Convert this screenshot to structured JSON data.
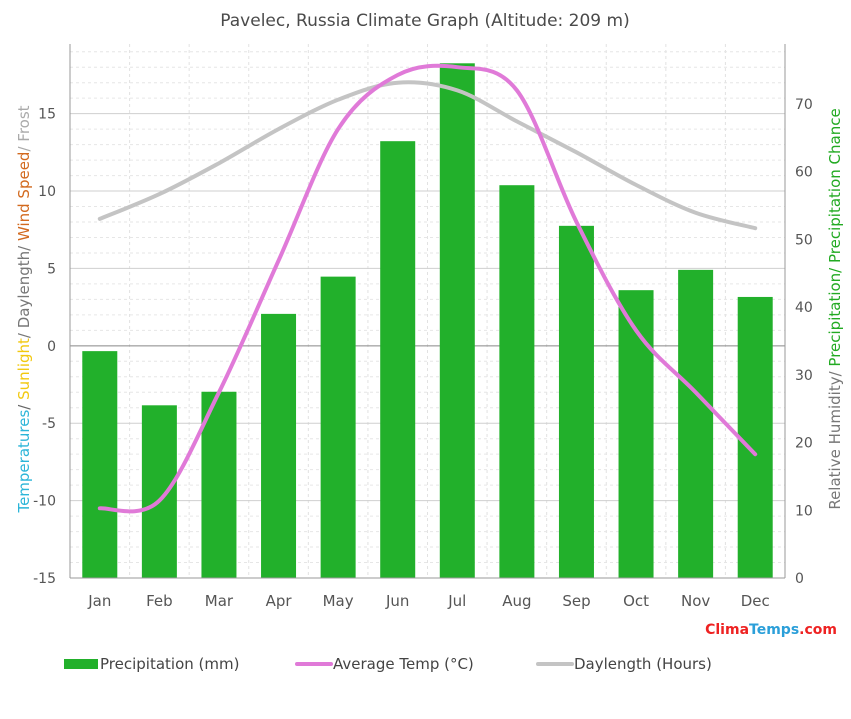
{
  "chart_data": {
    "type": "bar+line",
    "title": "Pavelec, Russia Climate Graph (Altitude: 209 m)",
    "categories": [
      "Jan",
      "Feb",
      "Mar",
      "Apr",
      "May",
      "Jun",
      "Jul",
      "Aug",
      "Sep",
      "Oct",
      "Nov",
      "Dec"
    ],
    "left_axis": {
      "min": -15,
      "max": 19.5,
      "ticks": [
        -15,
        -10,
        -5,
        0,
        5,
        10,
        15
      ],
      "title_parts": [
        {
          "text": "Temperatures",
          "color": "#2bb5d8"
        },
        {
          "text": "/ ",
          "color": "#666666"
        },
        {
          "text": "Sunlight",
          "color": "#f2c80f"
        },
        {
          "text": "/ Daylength/ ",
          "color": "#777777"
        },
        {
          "text": "Wind Speed",
          "color": "#d2691e"
        },
        {
          "text": "/ Frost",
          "color": "#aaaaaa"
        }
      ]
    },
    "right_axis": {
      "min": 0,
      "max": 78.85,
      "ticks": [
        0,
        10,
        20,
        30,
        40,
        50,
        60,
        70
      ],
      "title_parts": [
        {
          "text": "Relative Humidity/ ",
          "color": "#777777"
        },
        {
          "text": "Precipitation/ Precipitation Chance",
          "color": "#22aa22"
        }
      ]
    },
    "series": [
      {
        "name": "Precipitation (mm)",
        "kind": "bar",
        "axis": "right",
        "color": "#22b02b",
        "values": [
          33.5,
          25.5,
          27.5,
          39,
          44.5,
          64.5,
          76,
          58,
          52,
          42.5,
          45.5,
          41.5
        ]
      },
      {
        "name": "Average Temp (°C)",
        "kind": "line",
        "axis": "left",
        "color": "#e07ad8",
        "values": [
          -10.5,
          -10,
          -3,
          5.5,
          14,
          17.5,
          18,
          16.5,
          8,
          1,
          -3,
          -7
        ]
      },
      {
        "name": "Daylength (Hours)",
        "kind": "line",
        "axis": "left",
        "color": "#c4c4c4",
        "values": [
          8.2,
          9.8,
          11.8,
          14,
          15.9,
          17,
          16.5,
          14.5,
          12.5,
          10.4,
          8.6,
          7.6
        ]
      }
    ],
    "grid": true,
    "legend": "bottom"
  },
  "brand": {
    "part1": "Clima",
    "part2": "Temps",
    "part3": ".com",
    "color1": "#ee2222",
    "color2": "#2b9fd9"
  }
}
